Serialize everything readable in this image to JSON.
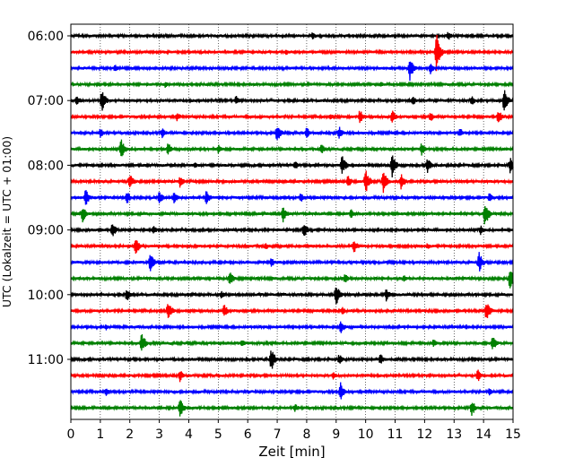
{
  "chart_data": {
    "type": "line",
    "subtype": "helicorder",
    "title": "",
    "xlabel": "Zeit  [min]",
    "ylabel": "UTC (Lokalzeit = UTC + 01:00)",
    "xlim": [
      0,
      15
    ],
    "x_ticks": [
      "0",
      "1",
      "2",
      "3",
      "4",
      "5",
      "6",
      "7",
      "8",
      "9",
      "10",
      "11",
      "12",
      "13",
      "14",
      "15"
    ],
    "y_ticks": [
      "06:00",
      "07:00",
      "08:00",
      "09:00",
      "10:00",
      "11:00"
    ],
    "rows_per_hour": 4,
    "grid": "vertical dotted lines at each minute",
    "trace_colors": [
      "#000000",
      "#ff0000",
      "#0000ff",
      "#008000"
    ],
    "traces": [
      {
        "start": "06:00",
        "events": [
          [
            8.2,
            5
          ],
          [
            12.8,
            6
          ]
        ]
      },
      {
        "start": "06:15",
        "events": [
          [
            12.4,
            22
          ],
          [
            7.3,
            4
          ]
        ]
      },
      {
        "start": "06:30",
        "events": [
          [
            1.5,
            5
          ],
          [
            11.5,
            14
          ],
          [
            12.2,
            7
          ]
        ]
      },
      {
        "start": "06:45",
        "events": [
          [
            3.2,
            4
          ],
          [
            10.5,
            4
          ]
        ]
      },
      {
        "start": "07:00",
        "events": [
          [
            0.2,
            7
          ],
          [
            1.05,
            14
          ],
          [
            14.7,
            14
          ],
          [
            5.6,
            6
          ],
          [
            11.6,
            6
          ],
          [
            13.6,
            6
          ]
        ]
      },
      {
        "start": "07:15",
        "events": [
          [
            3.6,
            6
          ],
          [
            8.8,
            5
          ],
          [
            9.8,
            9
          ],
          [
            10.9,
            8
          ],
          [
            12.2,
            6
          ],
          [
            14.5,
            9
          ]
        ]
      },
      {
        "start": "07:30",
        "events": [
          [
            1.0,
            6
          ],
          [
            3.1,
            7
          ],
          [
            7.0,
            12
          ],
          [
            8.0,
            7
          ],
          [
            9.1,
            8
          ],
          [
            13.2,
            6
          ]
        ]
      },
      {
        "start": "07:45",
        "events": [
          [
            1.7,
            13
          ],
          [
            3.3,
            8
          ],
          [
            5.0,
            6
          ],
          [
            8.5,
            7
          ],
          [
            11.9,
            8
          ]
        ]
      },
      {
        "start": "08:00",
        "events": [
          [
            4.2,
            4
          ],
          [
            7.6,
            6
          ],
          [
            9.2,
            13
          ],
          [
            10.9,
            15
          ],
          [
            12.1,
            9
          ],
          [
            14.9,
            10
          ]
        ]
      },
      {
        "start": "08:15",
        "events": [
          [
            2.0,
            10
          ],
          [
            3.7,
            7
          ],
          [
            9.4,
            8
          ],
          [
            10.0,
            15
          ],
          [
            10.6,
            14
          ],
          [
            11.2,
            10
          ]
        ]
      },
      {
        "start": "08:30",
        "events": [
          [
            0.5,
            11
          ],
          [
            1.9,
            8
          ],
          [
            3.0,
            8
          ],
          [
            3.5,
            7
          ],
          [
            4.6,
            9
          ],
          [
            7.8,
            6
          ],
          [
            14.2,
            6
          ]
        ]
      },
      {
        "start": "08:45",
        "events": [
          [
            0.4,
            10
          ],
          [
            7.2,
            10
          ],
          [
            9.5,
            6
          ],
          [
            14.05,
            16
          ]
        ]
      },
      {
        "start": "09:00",
        "events": [
          [
            1.4,
            10
          ],
          [
            2.8,
            6
          ],
          [
            7.9,
            10
          ],
          [
            13.9,
            6
          ]
        ]
      },
      {
        "start": "09:15",
        "events": [
          [
            2.2,
            12
          ],
          [
            6.6,
            5
          ],
          [
            9.6,
            9
          ],
          [
            12.1,
            4
          ]
        ]
      },
      {
        "start": "09:30",
        "events": [
          [
            2.7,
            13
          ],
          [
            6.8,
            6
          ],
          [
            13.85,
            12
          ]
        ]
      },
      {
        "start": "09:45",
        "events": [
          [
            5.4,
            10
          ],
          [
            9.3,
            6
          ],
          [
            11.3,
            4
          ],
          [
            14.9,
            14
          ]
        ]
      },
      {
        "start": "10:00",
        "events": [
          [
            1.9,
            8
          ],
          [
            5.1,
            5
          ],
          [
            9.0,
            13
          ],
          [
            10.7,
            8
          ]
        ]
      },
      {
        "start": "10:15",
        "events": [
          [
            3.3,
            12
          ],
          [
            5.2,
            8
          ],
          [
            9.2,
            5
          ],
          [
            14.1,
            13
          ]
        ]
      },
      {
        "start": "10:30",
        "events": [
          [
            1.2,
            4
          ],
          [
            9.15,
            9
          ],
          [
            13.4,
            4
          ]
        ]
      },
      {
        "start": "10:45",
        "events": [
          [
            2.4,
            13
          ],
          [
            5.8,
            5
          ],
          [
            12.3,
            5
          ],
          [
            14.3,
            10
          ]
        ]
      },
      {
        "start": "11:00",
        "events": [
          [
            6.8,
            14
          ],
          [
            9.1,
            7
          ],
          [
            10.5,
            7
          ],
          [
            13.7,
            4
          ]
        ]
      },
      {
        "start": "11:15",
        "events": [
          [
            3.7,
            8
          ],
          [
            8.9,
            5
          ],
          [
            13.8,
            8
          ]
        ]
      },
      {
        "start": "11:30",
        "events": [
          [
            1.2,
            6
          ],
          [
            9.15,
            11
          ],
          [
            14.2,
            5
          ]
        ]
      },
      {
        "start": "11:45",
        "events": [
          [
            3.7,
            12
          ],
          [
            7.6,
            6
          ],
          [
            13.6,
            10
          ]
        ]
      }
    ]
  }
}
